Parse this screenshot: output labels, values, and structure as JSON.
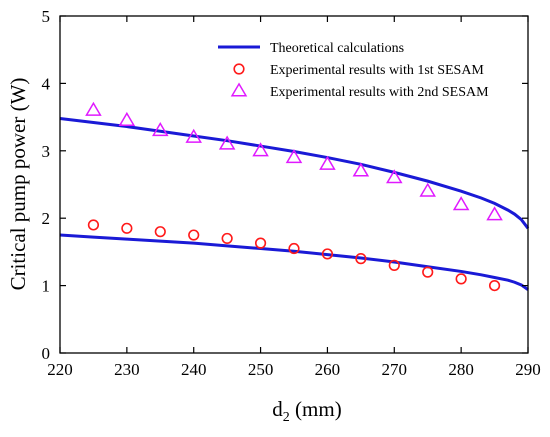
{
  "chart_data": {
    "type": "line",
    "title": "",
    "xlabel": {
      "main": "d",
      "sub": "2",
      "unit": " (mm)"
    },
    "ylabel": "Critical pump power (W)",
    "xlim": [
      220,
      290
    ],
    "ylim": [
      0,
      5
    ],
    "xticks": [
      220,
      230,
      240,
      250,
      260,
      270,
      280,
      290
    ],
    "yticks": [
      0,
      1,
      2,
      3,
      4,
      5
    ],
    "grid": false,
    "legend_position": "top-right",
    "series": [
      {
        "name": "Theoretical calculations",
        "kind": "line",
        "color": "#1a1ad6",
        "curves": [
          {
            "x": [
              220,
              225,
              230,
              235,
              240,
              245,
              250,
              255,
              260,
              265,
              270,
              275,
              280,
              283,
              285,
              287,
              288,
              289,
              290
            ],
            "y": [
              3.48,
              3.42,
              3.36,
              3.29,
              3.22,
              3.15,
              3.07,
              2.99,
              2.9,
              2.8,
              2.68,
              2.55,
              2.4,
              2.3,
              2.22,
              2.12,
              2.06,
              1.98,
              1.85
            ]
          },
          {
            "x": [
              220,
              225,
              230,
              235,
              240,
              245,
              250,
              255,
              260,
              265,
              270,
              275,
              280,
              283,
              285,
              287,
              288,
              289,
              290
            ],
            "y": [
              1.75,
              1.72,
              1.69,
              1.66,
              1.63,
              1.59,
              1.55,
              1.51,
              1.46,
              1.41,
              1.35,
              1.28,
              1.21,
              1.16,
              1.12,
              1.08,
              1.05,
              1.01,
              0.94
            ]
          }
        ]
      },
      {
        "name": "Experimental results with 1st SESAM",
        "kind": "circle",
        "color": "#ff1a1a",
        "x": [
          225,
          230,
          235,
          240,
          245,
          250,
          255,
          260,
          265,
          270,
          275,
          280,
          285
        ],
        "y": [
          1.9,
          1.85,
          1.8,
          1.75,
          1.7,
          1.63,
          1.55,
          1.47,
          1.4,
          1.3,
          1.2,
          1.1,
          1.0
        ]
      },
      {
        "name": "Experimental results with 2nd SESAM",
        "kind": "triangle",
        "color": "#e01aff",
        "x": [
          225,
          230,
          235,
          240,
          245,
          250,
          255,
          260,
          265,
          270,
          275,
          280,
          285
        ],
        "y": [
          3.6,
          3.45,
          3.3,
          3.2,
          3.1,
          3.0,
          2.9,
          2.8,
          2.7,
          2.6,
          2.4,
          2.2,
          2.05
        ]
      }
    ]
  }
}
